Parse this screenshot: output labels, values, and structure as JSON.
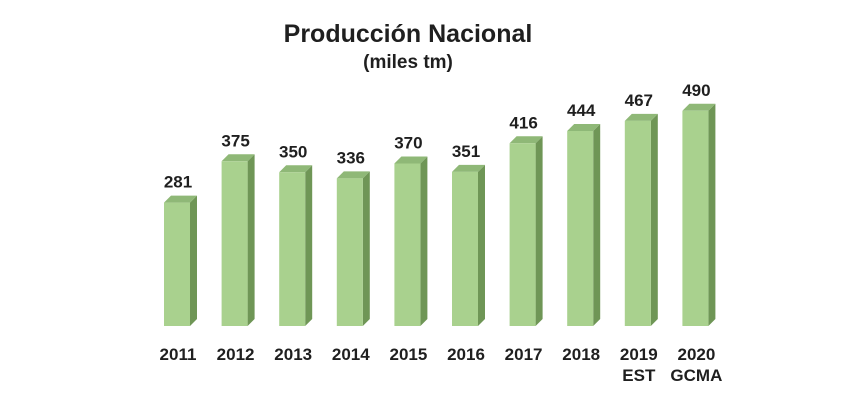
{
  "chart_data": {
    "type": "bar",
    "title": "Producción Nacional",
    "subtitle": "(miles tm)",
    "categories": [
      [
        "2011"
      ],
      [
        "2012"
      ],
      [
        "2013"
      ],
      [
        "2014"
      ],
      [
        "2015"
      ],
      [
        "2016"
      ],
      [
        "2017"
      ],
      [
        "2018"
      ],
      [
        "2019",
        "EST"
      ],
      [
        "2020",
        "GCMA"
      ]
    ],
    "values": [
      281,
      375,
      350,
      336,
      370,
      351,
      416,
      444,
      467,
      490
    ],
    "xlabel": "",
    "ylabel": "",
    "ylim": [
      0,
      500
    ],
    "grid": false,
    "legend": "none",
    "colors": {
      "bar_front": "#a9d18e",
      "bar_side": "#6f9656",
      "bar_top": "#8fb877",
      "text": "#1f1f1f"
    }
  }
}
